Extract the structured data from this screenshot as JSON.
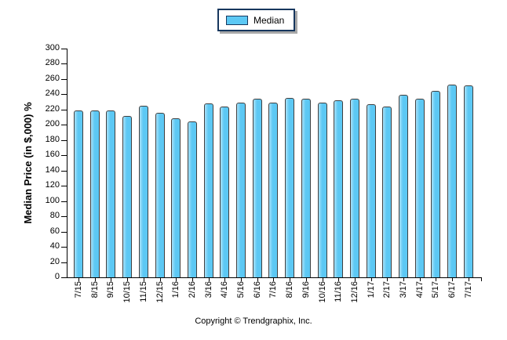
{
  "legend": {
    "items": [
      {
        "label": "Median"
      }
    ]
  },
  "y_axis": {
    "title": "Median Price (in $,000) %"
  },
  "footer": {
    "text": "Copyright © Trendgraphix, Inc."
  },
  "colors": {
    "bar_fill": "#5CC8F4",
    "bar_fill_light": "#A9E1F9",
    "bar_border": "#404040",
    "legend_border": "#17375E",
    "axis": "#000000"
  },
  "chart_data": {
    "type": "bar",
    "title": "",
    "categories": [
      "7/15",
      "8/15",
      "9/15",
      "10/15",
      "11/15",
      "12/15",
      "1/16",
      "2/16",
      "3/16",
      "4/16",
      "5/16",
      "6/16",
      "7/16",
      "8/16",
      "9/16",
      "10/16",
      "11/16",
      "12/16",
      "1/17",
      "2/17",
      "3/17",
      "4/17",
      "5/17",
      "6/17",
      "7/17"
    ],
    "series": [
      {
        "name": "Median",
        "values": [
          219,
          219,
          219,
          212,
          225,
          216,
          209,
          204,
          228,
          224,
          229,
          234,
          229,
          235,
          234,
          229,
          232,
          234,
          227,
          224,
          239,
          234,
          245,
          253,
          252
        ]
      }
    ],
    "xlabel": "",
    "ylabel": "Median Price (in $,000) %",
    "ylim": [
      0,
      300
    ],
    "ytick_step": 20,
    "grid": false,
    "legend_position": "top-center",
    "footer": "Copyright © Trendgraphix, Inc."
  }
}
